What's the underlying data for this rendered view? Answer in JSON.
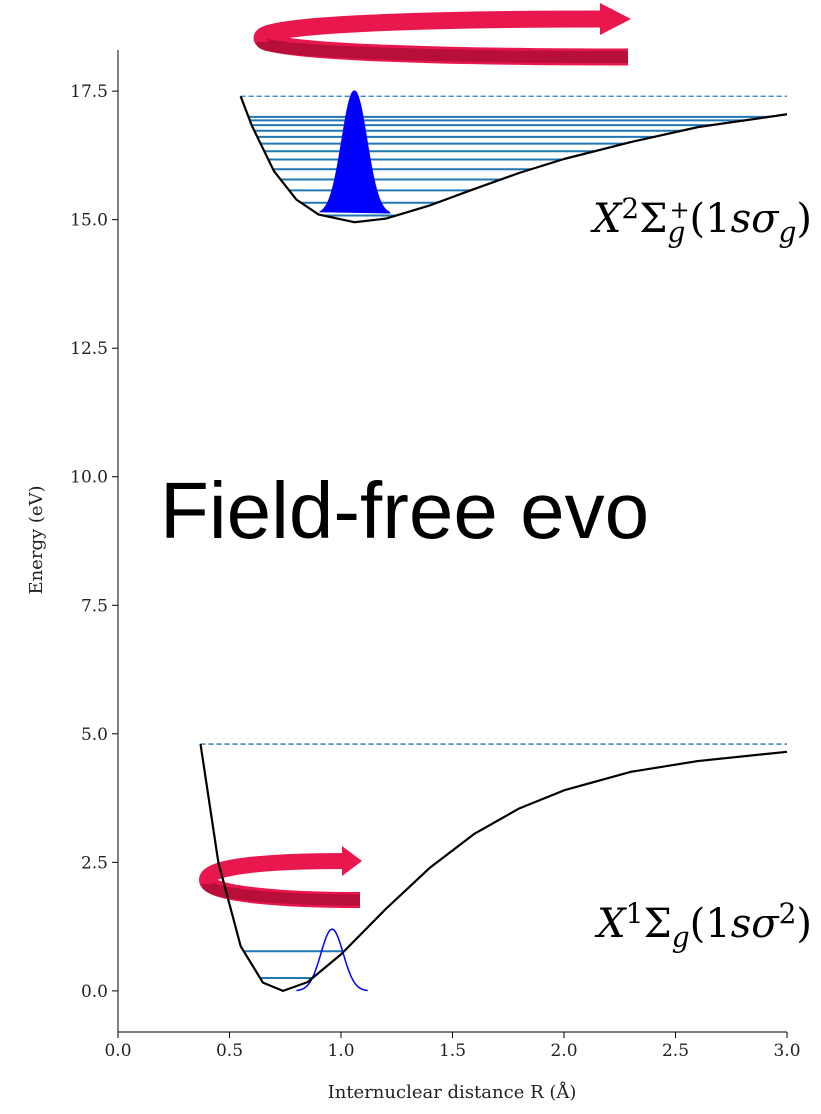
{
  "chart_data": {
    "type": "line",
    "x_label": "Internuclear distance R (Å)",
    "y_label": "Energy (eV)",
    "annotation": "Field-free evo",
    "xlim": [
      0,
      3
    ],
    "ylim": [
      -0.8,
      18.3
    ],
    "xticks": [
      {
        "value": 0,
        "label": "0.0"
      },
      0.5,
      {
        "value": 1,
        "label": "1.0"
      },
      1.5,
      {
        "value": 2,
        "label": "2.0"
      },
      2.5,
      {
        "value": 3,
        "label": "3.0"
      }
    ],
    "yticks": [
      {
        "value": 0,
        "label": "0.0"
      },
      2.5,
      {
        "value": 5,
        "label": "5.0"
      },
      7.5,
      {
        "value": 10,
        "label": "10.0"
      },
      12.5,
      {
        "value": 15,
        "label": "15.0"
      },
      17.5
    ],
    "series": [
      {
        "label": [
          "X",
          "1",
          "Σ",
          "g",
          "(1",
          "s",
          "σ",
          "2",
          ")"
        ],
        "color": "#000000",
        "x": [
          0.37,
          0.45,
          0.55,
          0.65,
          0.74,
          0.85,
          1.0,
          1.2,
          1.4,
          1.6,
          1.8,
          2.0,
          2.3,
          2.6,
          3.0
        ],
        "values": [
          4.8,
          2.5,
          0.87,
          0.16,
          0,
          0.17,
          0.71,
          1.59,
          2.4,
          3.06,
          3.55,
          3.9,
          4.26,
          4.47,
          4.65
        ],
        "limit": 4.8,
        "levels": [
          0.25,
          0.77
        ],
        "level_color": "#1f77b4",
        "wavepacket": {
          "center": 0.96,
          "base": 0,
          "height": 1.2,
          "sigma": 0.05,
          "span": [
            0.8,
            1.12
          ],
          "color": "#0000ff",
          "filled": false
        }
      },
      {
        "label": [
          "X",
          "2",
          "Σ",
          "g",
          "+",
          "(1",
          "s",
          "σ",
          "g",
          ")"
        ],
        "color": "#000000",
        "x": [
          0.55,
          0.6,
          0.7,
          0.8,
          0.9,
          1.06,
          1.2,
          1.4,
          1.6,
          1.8,
          2.0,
          2.3,
          2.6,
          3.0
        ],
        "values": [
          17.4,
          16.83,
          15.94,
          15.39,
          15.1,
          14.95,
          15.02,
          15.28,
          15.6,
          15.91,
          16.18,
          16.51,
          16.8,
          17.05
        ],
        "limit": 17.4,
        "levels": [
          15.08,
          15.33,
          15.57,
          15.78,
          15.98,
          16.17,
          16.33,
          16.48,
          16.61,
          16.73,
          16.84,
          16.93,
          17.0
        ],
        "level_color": "#1f77b4",
        "wavepacket": {
          "center": 1.06,
          "base": 15.1,
          "height": 2.4,
          "sigma": 0.055,
          "span": [
            0.91,
            1.22
          ],
          "color": "#0000ff",
          "filled": true
        }
      }
    ]
  }
}
